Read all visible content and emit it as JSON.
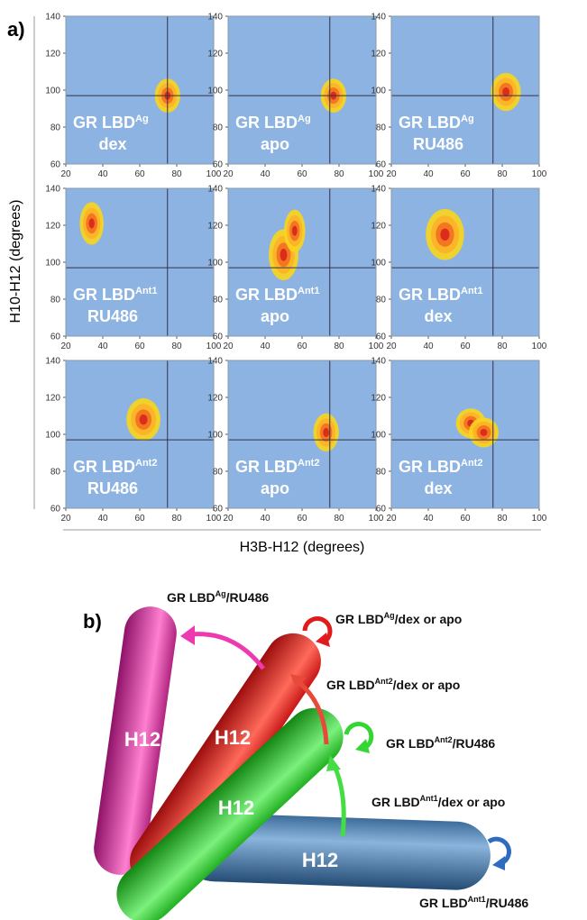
{
  "figure": {
    "panel_label": "a)",
    "xlabel": "H3B-H12 (degrees)",
    "ylabel": "H10-H12 (degrees)"
  },
  "chart_data": [
    {
      "type": "scatter",
      "label": "GR LBD",
      "label_sup": "Ag",
      "label_ligand": "dex",
      "color": "#8db3e2",
      "clusters": [
        {
          "x": 75,
          "y": 97,
          "sx": 3,
          "sy": 4
        }
      ],
      "crosshair": {
        "x": 75,
        "y": 97
      },
      "xlim": [
        20,
        100
      ],
      "ylim": [
        60,
        140
      ],
      "xticks": [
        20,
        40,
        60,
        80,
        100
      ],
      "yticks": [
        60,
        80,
        100,
        120,
        140
      ]
    },
    {
      "type": "scatter",
      "label": "GR LBD",
      "label_sup": "Ag",
      "label_ligand": "apo",
      "color": "#8db3e2",
      "clusters": [
        {
          "x": 77,
          "y": 97,
          "sx": 3,
          "sy": 4
        }
      ],
      "crosshair": {
        "x": 75,
        "y": 97
      },
      "xlim": [
        20,
        100
      ],
      "ylim": [
        60,
        140
      ],
      "xticks": [
        20,
        40,
        60,
        80,
        100
      ],
      "yticks": [
        60,
        80,
        100,
        120,
        140
      ]
    },
    {
      "type": "scatter",
      "label": "GR LBD",
      "label_sup": "Ag",
      "label_ligand": "RU486",
      "color": "#8db3e2",
      "clusters": [
        {
          "x": 82,
          "y": 99,
          "sx": 3.5,
          "sy": 4.5
        }
      ],
      "crosshair": {
        "x": 75,
        "y": 97
      },
      "xlim": [
        20,
        100
      ],
      "ylim": [
        60,
        140
      ],
      "xticks": [
        20,
        40,
        60,
        80,
        100
      ],
      "yticks": [
        60,
        80,
        100,
        120,
        140
      ]
    },
    {
      "type": "scatter",
      "label": "GR LBD",
      "label_sup": "Ant1",
      "label_ligand": "RU486",
      "color": "#8db3e2",
      "clusters": [
        {
          "x": 34,
          "y": 121,
          "sx": 2.8,
          "sy": 5
        }
      ],
      "crosshair": {
        "x": 75,
        "y": 97
      },
      "xlim": [
        20,
        100
      ],
      "ylim": [
        60,
        140
      ],
      "xticks": [
        20,
        40,
        60,
        80,
        100
      ],
      "yticks": [
        60,
        80,
        100,
        120,
        140
      ]
    },
    {
      "type": "scatter",
      "label": "GR LBD",
      "label_sup": "Ant1",
      "label_ligand": "apo",
      "color": "#8db3e2",
      "clusters": [
        {
          "x": 50,
          "y": 104,
          "sx": 3.5,
          "sy": 6
        },
        {
          "x": 56,
          "y": 117,
          "sx": 2.5,
          "sy": 5
        }
      ],
      "crosshair": {
        "x": 75,
        "y": 97
      },
      "xlim": [
        20,
        100
      ],
      "ylim": [
        60,
        140
      ],
      "xticks": [
        20,
        40,
        60,
        80,
        100
      ],
      "yticks": [
        60,
        80,
        100,
        120,
        140
      ]
    },
    {
      "type": "scatter",
      "label": "GR LBD",
      "label_sup": "Ant1",
      "label_ligand": "dex",
      "color": "#8db3e2",
      "clusters": [
        {
          "x": 49,
          "y": 115,
          "sx": 4.5,
          "sy": 6
        }
      ],
      "crosshair": {
        "x": 75,
        "y": 97
      },
      "xlim": [
        20,
        100
      ],
      "ylim": [
        60,
        140
      ],
      "xticks": [
        20,
        40,
        60,
        80,
        100
      ],
      "yticks": [
        60,
        80,
        100,
        120,
        140
      ]
    },
    {
      "type": "scatter",
      "label": "GR LBD",
      "label_sup": "Ant2",
      "label_ligand": "RU486",
      "color": "#8db3e2",
      "clusters": [
        {
          "x": 62,
          "y": 108,
          "sx": 4,
          "sy": 5
        }
      ],
      "crosshair": {
        "x": 75,
        "y": 97
      },
      "xlim": [
        20,
        100
      ],
      "ylim": [
        60,
        140
      ],
      "xticks": [
        20,
        40,
        60,
        80,
        100
      ],
      "yticks": [
        60,
        80,
        100,
        120,
        140
      ]
    },
    {
      "type": "scatter",
      "label": "GR LBD",
      "label_sup": "Ant2",
      "label_ligand": "apo",
      "color": "#8db3e2",
      "clusters": [
        {
          "x": 73,
          "y": 101,
          "sx": 3,
          "sy": 4.5
        }
      ],
      "crosshair": {
        "x": 75,
        "y": 97
      },
      "xlim": [
        20,
        100
      ],
      "ylim": [
        60,
        140
      ],
      "xticks": [
        20,
        40,
        60,
        80,
        100
      ],
      "yticks": [
        60,
        80,
        100,
        120,
        140
      ]
    },
    {
      "type": "scatter",
      "label": "GR LBD",
      "label_sup": "Ant2",
      "label_ligand": "dex",
      "color": "#8db3e2",
      "clusters": [
        {
          "x": 63,
          "y": 106,
          "sx": 3.5,
          "sy": 3.5
        },
        {
          "x": 70,
          "y": 101,
          "sx": 3.5,
          "sy": 3.5
        }
      ],
      "crosshair": {
        "x": 75,
        "y": 97
      },
      "xlim": [
        20,
        100
      ],
      "ylim": [
        60,
        140
      ],
      "xticks": [
        20,
        40,
        60,
        80,
        100
      ],
      "yticks": [
        60,
        80,
        100,
        120,
        140
      ]
    }
  ],
  "diagram": {
    "panel_label": "b)",
    "helices": [
      "H12",
      "H12",
      "H12",
      "H12"
    ],
    "annotations": [
      {
        "text": "GR LBD",
        "sup": "Ag",
        "rest": "/RU486"
      },
      {
        "text": "GR LBD",
        "sup": "Ag",
        "rest": "/dex or apo"
      },
      {
        "text": "GR LBD",
        "sup": "Ant2",
        "rest": "/dex or apo"
      },
      {
        "text": "GR LBD",
        "sup": "Ant2",
        "rest": "/RU486"
      },
      {
        "text": "GR LBD",
        "sup": "Ant1",
        "rest": "/dex or apo"
      },
      {
        "text": "GR LBD",
        "sup": "Ant1",
        "rest": "/RU486"
      }
    ]
  }
}
